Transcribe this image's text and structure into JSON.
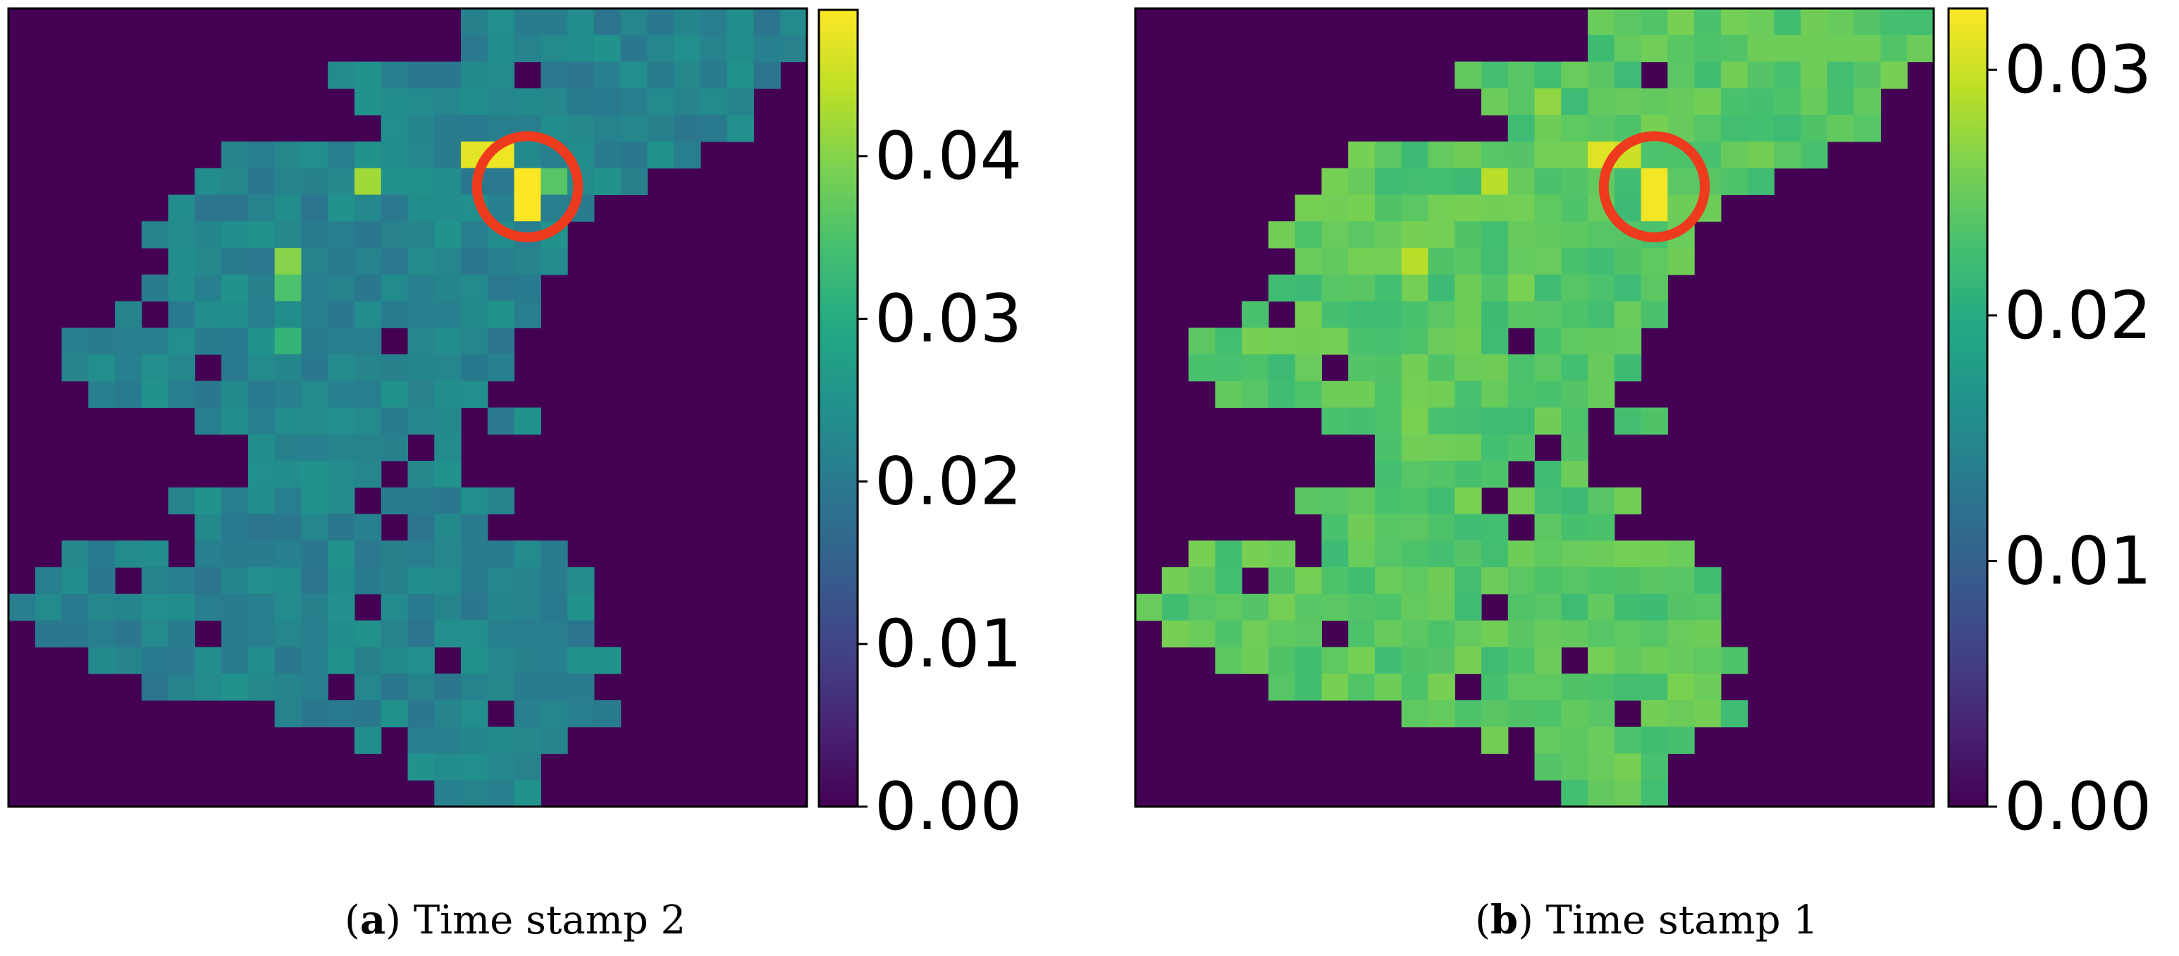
{
  "figure": {
    "panels": [
      {
        "label": "a",
        "caption": "Time stamp 2"
      },
      {
        "label": "b",
        "caption": "Time stamp 1"
      }
    ]
  },
  "chart_data": [
    {
      "type": "heatmap",
      "title": "",
      "grid_size": [
        30,
        30
      ],
      "colormap": "viridis",
      "vmin": 0.0,
      "vmax": 0.049,
      "colorbar_ticks": [
        0.0,
        0.01,
        0.02,
        0.03,
        0.04
      ],
      "colorbar_tick_labels": [
        "0.00",
        "0.01",
        "0.02",
        "0.03",
        "0.04"
      ],
      "base_value": 0.022,
      "hotspots": [
        {
          "row": 6,
          "col": 19,
          "value": 0.049
        },
        {
          "row": 7,
          "col": 19,
          "value": 0.049
        },
        {
          "row": 5,
          "col": 17,
          "value": 0.047
        },
        {
          "row": 5,
          "col": 18,
          "value": 0.048
        },
        {
          "row": 6,
          "col": 13,
          "value": 0.042
        },
        {
          "row": 9,
          "col": 10,
          "value": 0.04
        },
        {
          "row": 10,
          "col": 10,
          "value": 0.035
        },
        {
          "row": 12,
          "col": 10,
          "value": 0.032
        },
        {
          "row": 6,
          "col": 20,
          "value": 0.036
        }
      ],
      "annotation": {
        "shape": "circle",
        "color": "#ee3a1d",
        "center_cell": [
          6.2,
          19.0
        ],
        "radius_cells": 1.9
      }
    },
    {
      "type": "heatmap",
      "title": "",
      "grid_size": [
        30,
        30
      ],
      "colormap": "viridis",
      "vmin": 0.0,
      "vmax": 0.0325,
      "colorbar_ticks": [
        0.0,
        0.01,
        0.02,
        0.03
      ],
      "colorbar_tick_labels": [
        "0.00",
        "0.01",
        "0.02",
        "0.03"
      ],
      "base_value": 0.024,
      "hotspots": [
        {
          "row": 6,
          "col": 19,
          "value": 0.032
        },
        {
          "row": 7,
          "col": 19,
          "value": 0.032
        },
        {
          "row": 5,
          "col": 17,
          "value": 0.031
        },
        {
          "row": 5,
          "col": 18,
          "value": 0.03
        },
        {
          "row": 6,
          "col": 13,
          "value": 0.029
        },
        {
          "row": 9,
          "col": 10,
          "value": 0.029
        },
        {
          "row": 12,
          "col": 14,
          "value": 0.028
        },
        {
          "row": 3,
          "col": 15,
          "value": 0.027
        }
      ],
      "annotation": {
        "shape": "circle",
        "color": "#ee3a1d",
        "center_cell": [
          6.2,
          19.0
        ],
        "radius_cells": 1.9
      }
    }
  ]
}
